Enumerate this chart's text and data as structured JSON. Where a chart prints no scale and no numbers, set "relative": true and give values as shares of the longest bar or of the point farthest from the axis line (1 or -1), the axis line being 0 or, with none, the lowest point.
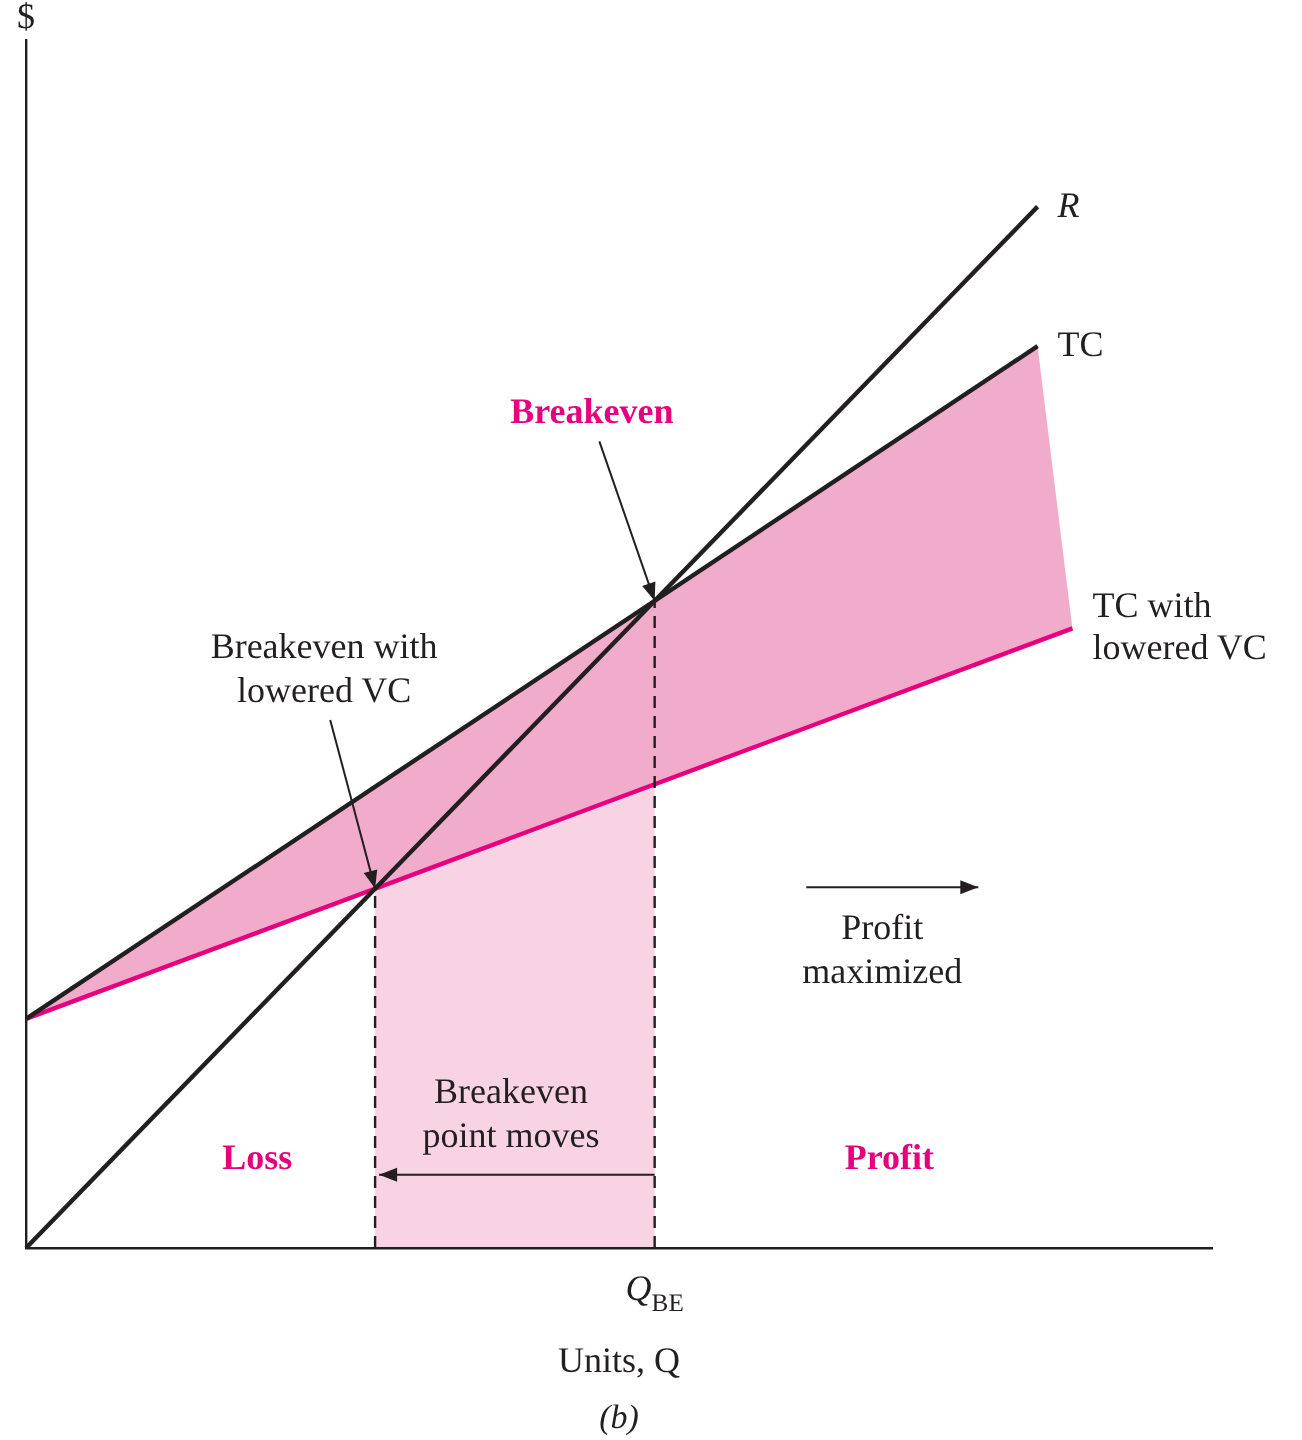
{
  "chart_data": {
    "type": "line",
    "relative": true,
    "ylabel": "$",
    "xlabel": "Units, Q",
    "legend": false,
    "grid": false,
    "marker": "none",
    "categories": [
      null,
      null,
      null,
      null,
      null,
      null,
      null,
      null,
      null,
      null,
      null,
      null,
      null,
      null,
      null,
      null,
      null,
      null,
      null,
      null,
      null,
      null,
      null,
      null,
      null,
      null,
      null,
      null,
      null,
      null,
      null,
      null,
      null,
      null,
      null
    ],
    "series": [
      {
        "name": "R",
        "color": "#231f20",
        "values": [
          0,
          null,
          null,
          null,
          null,
          null,
          null,
          null,
          null,
          null,
          null,
          null,
          null,
          null,
          null,
          null,
          null,
          null,
          null,
          null,
          null,
          null,
          null,
          null,
          null,
          null,
          null,
          null,
          null,
          1,
          null,
          null,
          null,
          null,
          null
        ]
      },
      {
        "name": "TC",
        "color": "#231f20",
        "values": [
          0.22,
          null,
          null,
          null,
          null,
          null,
          null,
          null,
          null,
          null,
          null,
          null,
          null,
          null,
          null,
          null,
          null,
          null,
          null,
          null,
          null,
          null,
          null,
          null,
          null,
          null,
          null,
          null,
          null,
          0.866,
          null,
          null,
          null,
          null,
          null
        ]
      },
      {
        "name": "TC with lowered VC",
        "color": "#e6007e",
        "values": [
          0.22,
          null,
          null,
          null,
          null,
          null,
          null,
          null,
          null,
          null,
          null,
          null,
          null,
          null,
          null,
          null,
          null,
          null,
          null,
          null,
          null,
          null,
          null,
          null,
          null,
          null,
          null,
          null,
          null,
          null,
          0.595,
          null,
          null,
          null,
          null
        ]
      }
    ],
    "annotations": [
      "Breakeven",
      "Breakeven with lowered VC",
      "Q$_{BE}$",
      "Profit maximized",
      "Breakeven point moves",
      "Loss",
      "Profit",
      "(b)"
    ]
  }
}
